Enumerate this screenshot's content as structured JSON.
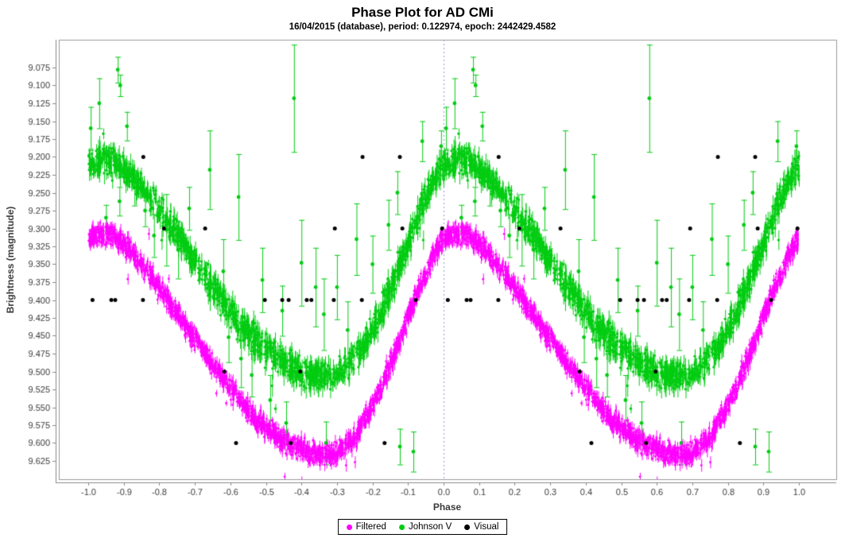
{
  "colors": {
    "background": "#FFFFFF",
    "frame": "#9a9a9a",
    "axis_line": "#8a8a8a",
    "tick_text": "#3a3a3a",
    "title_text": "#000000",
    "zero_phase_line": "#8f97c9",
    "filtered": "#FF00FF",
    "johnson_v": "#00CC11",
    "visual": "#000000"
  },
  "chart_data": {
    "type": "scatter",
    "title": "Phase Plot for AD CMi",
    "subtitle": "16/04/2015 (database), period: 0.122974, epoch: 2442429.4582",
    "xlabel": "Phase",
    "ylabel": "Brightness (magnitude)",
    "grid": false,
    "legend_position": "bottom-center",
    "plot_convention": "each observation is plotted twice, at phase and phase minus 1",
    "x_axis": {
      "range": [
        -1.085,
        1.105
      ],
      "tick_labels": [
        "-1.0",
        "-0.9",
        "-0.8",
        "-0.7",
        "-0.6",
        "-0.5",
        "-0.4",
        "-0.3",
        "-0.2",
        "-0.1",
        "0.0",
        "0.1",
        "0.2",
        "0.3",
        "0.4",
        "0.5",
        "0.6",
        "0.7",
        "0.8",
        "0.9",
        "1.0"
      ]
    },
    "y_axis": {
      "inverted": true,
      "range_top_to_bottom": [
        9.036,
        9.651
      ],
      "tick_labels": [
        "9.075",
        "9.100",
        "9.125",
        "9.150",
        "9.175",
        "9.200",
        "9.225",
        "9.250",
        "9.275",
        "9.300",
        "9.325",
        "9.350",
        "9.375",
        "9.400",
        "9.425",
        "9.450",
        "9.475",
        "9.500",
        "9.525",
        "9.550",
        "9.575",
        "9.600",
        "9.625"
      ]
    },
    "zero_phase_marker": {
      "x": 0.0,
      "style": "dashed"
    },
    "series": [
      {
        "name": "Filtered",
        "color": "#FF00FF",
        "kind": "dense_band",
        "point_count": 1600,
        "scatter_sigma_mag": 0.007,
        "error_bar_mag": [
          0.004,
          0.01
        ],
        "mean_curve": {
          "phase": [
            0.0,
            0.03,
            0.07,
            0.12,
            0.17,
            0.22,
            0.27,
            0.32,
            0.37,
            0.42,
            0.47,
            0.52,
            0.57,
            0.62,
            0.66,
            0.7,
            0.74,
            0.78,
            0.82,
            0.86,
            0.9,
            0.94,
            0.97,
            1.0
          ],
          "mag": [
            9.315,
            9.308,
            9.31,
            9.333,
            9.362,
            9.397,
            9.433,
            9.469,
            9.504,
            9.537,
            9.565,
            9.588,
            9.604,
            9.614,
            9.618,
            9.613,
            9.596,
            9.567,
            9.527,
            9.477,
            9.424,
            9.372,
            9.338,
            9.315
          ]
        }
      },
      {
        "name": "Johnson V",
        "color": "#00CC11",
        "kind": "dense_band",
        "point_count": 1250,
        "scatter_sigma_mag": 0.01,
        "error_bar_mag": [
          0.006,
          0.016
        ],
        "mean_curve": {
          "phase": [
            0.0,
            0.03,
            0.07,
            0.12,
            0.17,
            0.22,
            0.27,
            0.32,
            0.37,
            0.42,
            0.47,
            0.52,
            0.57,
            0.62,
            0.66,
            0.7,
            0.74,
            0.78,
            0.82,
            0.86,
            0.9,
            0.94,
            0.97,
            1.0
          ],
          "mag": [
            9.213,
            9.204,
            9.206,
            9.228,
            9.256,
            9.29,
            9.325,
            9.361,
            9.396,
            9.428,
            9.456,
            9.478,
            9.494,
            9.504,
            9.507,
            9.502,
            9.487,
            9.46,
            9.421,
            9.373,
            9.321,
            9.27,
            9.237,
            9.213
          ]
        },
        "outliers": [
          [
            0.083,
            9.078,
            0.018
          ],
          [
            0.09,
            9.1,
            0.015
          ],
          [
            0.031,
            9.125,
            0.035
          ],
          [
            0.109,
            9.157,
            0.02
          ],
          [
            0.993,
            9.185,
            0.022
          ],
          [
            0.007,
            9.16,
            0.03
          ],
          [
            0.94,
            9.178,
            0.028
          ],
          [
            0.579,
            9.118,
            0.075
          ],
          [
            0.342,
            9.218,
            0.055
          ],
          [
            0.423,
            9.256,
            0.06
          ],
          [
            0.284,
            9.272,
            0.03
          ],
          [
            0.13,
            9.243,
            0.025
          ],
          [
            0.16,
            9.275,
            0.022
          ],
          [
            0.185,
            9.31,
            0.03
          ],
          [
            0.22,
            9.302,
            0.05
          ],
          [
            0.253,
            9.33,
            0.04
          ],
          [
            0.38,
            9.36,
            0.045
          ],
          [
            0.49,
            9.372,
            0.045
          ],
          [
            0.546,
            9.415,
            0.035
          ],
          [
            0.6,
            9.348,
            0.06
          ],
          [
            0.64,
            9.382,
            0.055
          ],
          [
            0.663,
            9.42,
            0.05
          ],
          [
            0.7,
            9.382,
            0.045
          ],
          [
            0.73,
            9.442,
            0.04
          ],
          [
            0.755,
            9.315,
            0.05
          ],
          [
            0.8,
            9.35,
            0.04
          ],
          [
            0.845,
            9.295,
            0.035
          ],
          [
            0.87,
            9.25,
            0.03
          ],
          [
            0.05,
            9.285,
            0.018
          ],
          [
            0.088,
            9.262,
            0.02
          ],
          [
            0.395,
            9.452,
            0.035
          ],
          [
            0.43,
            9.482,
            0.04
          ],
          [
            0.46,
            9.505,
            0.03
          ],
          [
            0.512,
            9.54,
            0.035
          ],
          [
            0.557,
            9.572,
            0.03
          ],
          [
            0.669,
            9.6,
            0.03
          ],
          [
            0.877,
            9.605,
            0.025
          ],
          [
            0.915,
            9.612,
            0.028
          ]
        ]
      },
      {
        "name": "Visual",
        "color": "#000000",
        "kind": "discrete_points",
        "note": "visual estimates quantized to 0.1 mag",
        "points": [
          [
            0.155,
            9.2
          ],
          [
            0.772,
            9.2
          ],
          [
            0.877,
            9.2
          ],
          [
            0.213,
            9.3
          ],
          [
            0.329,
            9.3
          ],
          [
            0.694,
            9.3
          ],
          [
            0.884,
            9.3
          ],
          [
            0.996,
            9.3
          ],
          [
            0.012,
            9.4
          ],
          [
            0.065,
            9.4
          ],
          [
            0.076,
            9.4
          ],
          [
            0.154,
            9.4
          ],
          [
            0.497,
            9.4
          ],
          [
            0.546,
            9.4
          ],
          [
            0.564,
            9.4
          ],
          [
            0.615,
            9.4
          ],
          [
            0.628,
            9.4
          ],
          [
            0.691,
            9.4
          ],
          [
            0.77,
            9.4
          ],
          [
            0.922,
            9.4
          ],
          [
            0.383,
            9.5
          ],
          [
            0.597,
            9.5
          ],
          [
            0.416,
            9.6
          ],
          [
            0.57,
            9.6
          ],
          [
            0.834,
            9.6
          ]
        ]
      }
    ]
  }
}
